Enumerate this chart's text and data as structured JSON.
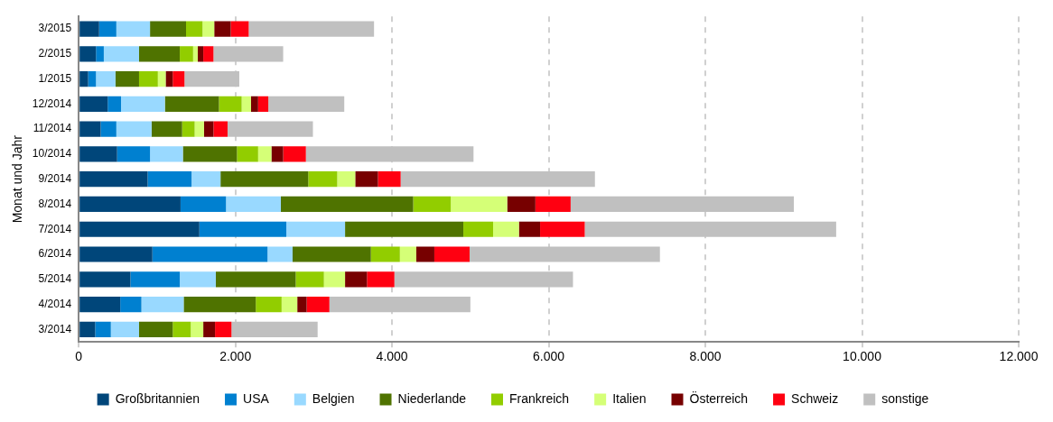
{
  "chart_data": {
    "type": "bar",
    "orientation": "horizontal",
    "stacked": true,
    "ylabel": "Monat und Jahr",
    "categories": [
      "3/2015",
      "2/2015",
      "1/2015",
      "12/2014",
      "11/2014",
      "10/2014",
      "9/2014",
      "8/2014",
      "7/2014",
      "6/2014",
      "5/2014",
      "4/2014",
      "3/2014"
    ],
    "series": [
      {
        "name": "Großbritannien",
        "color": "#00467a",
        "values": [
          260,
          220,
          120,
          370,
          280,
          490,
          880,
          1300,
          1540,
          940,
          660,
          530,
          210
        ]
      },
      {
        "name": "USA",
        "color": "#0080d0",
        "values": [
          220,
          100,
          100,
          170,
          200,
          420,
          560,
          580,
          1110,
          1470,
          630,
          270,
          200
        ]
      },
      {
        "name": "Belgien",
        "color": "#99d9ff",
        "values": [
          430,
          450,
          250,
          560,
          450,
          420,
          370,
          700,
          750,
          320,
          460,
          540,
          360
        ]
      },
      {
        "name": "Niederlande",
        "color": "#4f7300",
        "values": [
          460,
          520,
          300,
          690,
          390,
          690,
          1120,
          1690,
          1510,
          1000,
          1020,
          920,
          430
        ]
      },
      {
        "name": "Frankreich",
        "color": "#92cd00",
        "values": [
          210,
          170,
          240,
          290,
          160,
          270,
          370,
          480,
          380,
          370,
          360,
          330,
          230
        ]
      },
      {
        "name": "Italien",
        "color": "#d5ff77",
        "values": [
          150,
          60,
          100,
          120,
          120,
          170,
          230,
          720,
          330,
          210,
          270,
          200,
          160
        ]
      },
      {
        "name": "Österreich",
        "color": "#770000",
        "values": [
          210,
          70,
          90,
          90,
          120,
          150,
          290,
          360,
          270,
          230,
          280,
          120,
          150
        ]
      },
      {
        "name": "Schweiz",
        "color": "#ff0011",
        "values": [
          230,
          130,
          150,
          130,
          180,
          290,
          290,
          450,
          570,
          450,
          350,
          290,
          210
        ]
      },
      {
        "name": "sonstige",
        "color": "#c0c0c0",
        "values": [
          1600,
          890,
          700,
          970,
          1090,
          2140,
          2480,
          2850,
          3210,
          2430,
          2280,
          1800,
          1100
        ]
      }
    ],
    "xlim": [
      0,
      12000
    ],
    "xticks": [
      0,
      {
        "value": 2000,
        "label": "2.000"
      },
      {
        "value": 4000,
        "label": "4.000"
      },
      {
        "value": 6000,
        "label": "6.000"
      },
      {
        "value": 8000,
        "label": "8.000"
      },
      {
        "value": 10000,
        "label": "10.000"
      },
      {
        "value": 12000,
        "label": "12.000"
      }
    ],
    "grid": "x",
    "legend": "bottom"
  }
}
